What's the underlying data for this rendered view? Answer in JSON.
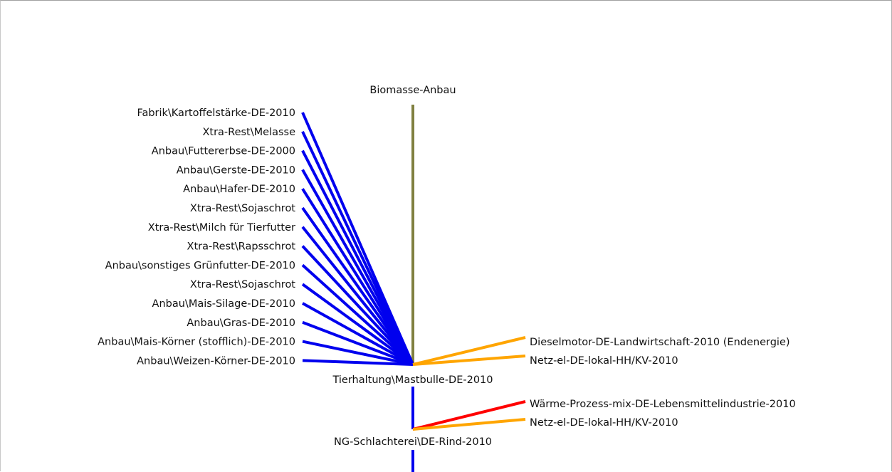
{
  "diagram": {
    "top_node": "Biomasse-Anbau",
    "main_process": "Tierhaltung\\Mastbulle-DE-2010",
    "second_process": "NG-Schlachterei\\DE-Rind-2010",
    "inputs": [
      "Fabrik\\Kartoffelstärke-DE-2010",
      "Xtra-Rest\\Melasse",
      "Anbau\\Futtererbse-DE-2000",
      "Anbau\\Gerste-DE-2010",
      "Anbau\\Hafer-DE-2010",
      "Xtra-Rest\\Sojaschrot",
      "Xtra-Rest\\Milch für Tierfutter",
      "Xtra-Rest\\Rapsschrot",
      "Anbau\\sonstiges Grünfutter-DE-2010",
      "Xtra-Rest\\Sojaschrot",
      "Anbau\\Mais-Silage-DE-2010",
      "Anbau\\Gras-DE-2010",
      "Anbau\\Mais-Körner (stofflich)-DE-2010",
      "Anbau\\Weizen-Körner-DE-2010"
    ],
    "main_energy_inputs": [
      "Dieselmotor-DE-Landwirtschaft-2010 (Endenergie)",
      "Netz-el-DE-lokal-HH/KV-2010"
    ],
    "second_energy_inputs": [
      "Wärme-Prozess-mix-DE-Lebensmittelindustrie-2010",
      "Netz-el-DE-lokal-HH/KV-2010"
    ],
    "colors": {
      "biomass_link": "#808040",
      "material_link": "#0000ee",
      "electricity_link": "#ffa500",
      "heat_link": "#ff0000"
    }
  }
}
